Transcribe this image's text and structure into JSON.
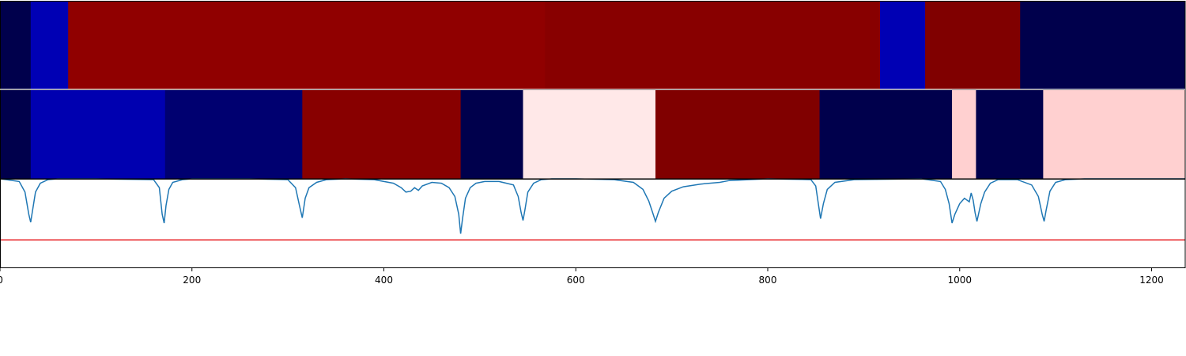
{
  "chart_data": [
    {
      "type": "heatmap",
      "xlim": [
        0,
        1235
      ],
      "segments": [
        {
          "start": 0,
          "end": 32,
          "color": "#00004c"
        },
        {
          "start": 32,
          "end": 71,
          "color": "#0000b4"
        },
        {
          "start": 71,
          "end": 568,
          "color": "#900000"
        },
        {
          "start": 568,
          "end": 917,
          "color": "#880000"
        },
        {
          "start": 917,
          "end": 964,
          "color": "#0000b4"
        },
        {
          "start": 964,
          "end": 1063,
          "color": "#800000"
        },
        {
          "start": 1063,
          "end": 1235,
          "color": "#00004c"
        }
      ]
    },
    {
      "type": "heatmap",
      "xlim": [
        0,
        1235
      ],
      "segments": [
        {
          "start": 0,
          "end": 32,
          "color": "#00004c"
        },
        {
          "start": 32,
          "end": 172,
          "color": "#0000b0"
        },
        {
          "start": 172,
          "end": 315,
          "color": "#000070"
        },
        {
          "start": 315,
          "end": 480,
          "color": "#880000"
        },
        {
          "start": 480,
          "end": 545,
          "color": "#00004c"
        },
        {
          "start": 545,
          "end": 683,
          "color": "#ffe8e8"
        },
        {
          "start": 683,
          "end": 854,
          "color": "#800000"
        },
        {
          "start": 854,
          "end": 992,
          "color": "#00004c"
        },
        {
          "start": 992,
          "end": 1017,
          "color": "#ffd0d0"
        },
        {
          "start": 1017,
          "end": 1087,
          "color": "#00004c"
        },
        {
          "start": 1087,
          "end": 1235,
          "color": "#ffd0d0"
        }
      ]
    },
    {
      "type": "line",
      "xlim": [
        0,
        1235
      ],
      "ylim": [
        0,
        1
      ],
      "xticks": [
        "0",
        "200",
        "400",
        "600",
        "800",
        "1000",
        "1200"
      ],
      "xtick_values": [
        0,
        200,
        400,
        600,
        800,
        1000,
        1200
      ],
      "threshold": {
        "value": 0.31,
        "color": "#e8262a"
      },
      "series": [
        {
          "color": "#1f77b4",
          "x": [
            0,
            20,
            26,
            30,
            32,
            34,
            37,
            42,
            50,
            60,
            100,
            160,
            166,
            169,
            171,
            173,
            176,
            180,
            190,
            200,
            260,
            300,
            308,
            312,
            315,
            318,
            322,
            330,
            340,
            360,
            390,
            410,
            418,
            423,
            428,
            432,
            436,
            440,
            450,
            460,
            468,
            474,
            478,
            480,
            482,
            485,
            490,
            496,
            505,
            520,
            535,
            540,
            543,
            545,
            547,
            550,
            556,
            564,
            575,
            600,
            640,
            660,
            670,
            676,
            680,
            683,
            686,
            692,
            700,
            712,
            730,
            750,
            760,
            800,
            845,
            850,
            853,
            855,
            858,
            862,
            870,
            890,
            960,
            980,
            985,
            989,
            992,
            995,
            1000,
            1005,
            1010,
            1012,
            1014,
            1016,
            1018,
            1022,
            1026,
            1032,
            1040,
            1060,
            1075,
            1082,
            1086,
            1088,
            1090,
            1094,
            1100,
            1110,
            1130,
            1235
          ],
          "y": [
            1.0,
            0.97,
            0.85,
            0.6,
            0.51,
            0.65,
            0.85,
            0.95,
            0.99,
            1.0,
            1.0,
            0.99,
            0.9,
            0.6,
            0.5,
            0.7,
            0.88,
            0.96,
            0.99,
            1.0,
            1.0,
            0.99,
            0.9,
            0.7,
            0.56,
            0.78,
            0.9,
            0.96,
            0.99,
            1.0,
            0.99,
            0.95,
            0.9,
            0.85,
            0.86,
            0.9,
            0.87,
            0.92,
            0.96,
            0.95,
            0.9,
            0.8,
            0.6,
            0.38,
            0.55,
            0.78,
            0.9,
            0.95,
            0.97,
            0.97,
            0.93,
            0.8,
            0.62,
            0.53,
            0.65,
            0.85,
            0.95,
            0.99,
            1.0,
            1.0,
            0.99,
            0.96,
            0.88,
            0.75,
            0.62,
            0.52,
            0.62,
            0.78,
            0.86,
            0.91,
            0.94,
            0.96,
            0.98,
            1.0,
            0.99,
            0.92,
            0.7,
            0.55,
            0.72,
            0.88,
            0.96,
            0.99,
            1.0,
            0.97,
            0.88,
            0.72,
            0.5,
            0.6,
            0.72,
            0.78,
            0.74,
            0.84,
            0.76,
            0.62,
            0.52,
            0.72,
            0.85,
            0.95,
            0.99,
            0.99,
            0.93,
            0.8,
            0.6,
            0.52,
            0.64,
            0.86,
            0.96,
            0.99,
            1.0,
            1.0
          ]
        }
      ]
    }
  ]
}
